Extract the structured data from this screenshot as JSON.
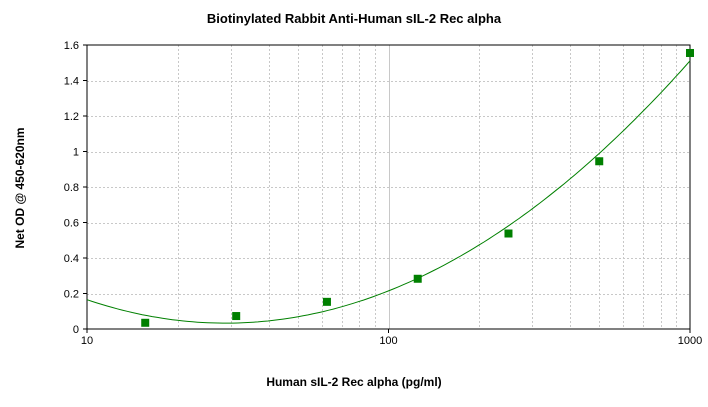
{
  "chart_data": {
    "type": "scatter",
    "title": "Biotinylated Rabbit Anti-Human sIL-2 Rec alpha",
    "xlabel": "Human sIL-2 Rec alpha (pg/ml)",
    "ylabel": "Net OD @ 450-620nm",
    "x_scale": "log",
    "xlim": [
      10,
      1000
    ],
    "ylim": [
      0,
      1.6
    ],
    "x_ticks": [
      "10",
      "100",
      "1000"
    ],
    "y_ticks": [
      "0",
      "0.2",
      "0.4",
      "0.6",
      "0.8",
      "1",
      "1.2",
      "1.4",
      "1.6"
    ],
    "grid": true,
    "legend": "none",
    "series": [
      {
        "x": [
          15.6,
          31.25,
          62.5,
          125,
          250,
          500,
          1000
        ],
        "y": [
          0.035,
          0.073,
          0.153,
          0.283,
          0.538,
          0.945,
          1.555
        ],
        "marker": "square",
        "fit_curve": true
      }
    ],
    "colors": {
      "marker": "#008000",
      "curve": "#008000",
      "grid": "#c8c8c8",
      "axis": "#000000"
    }
  }
}
